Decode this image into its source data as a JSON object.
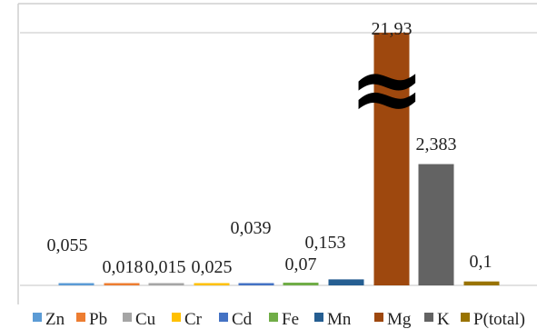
{
  "chart_data": {
    "type": "bar",
    "categories": [
      "Zn",
      "Pb",
      "Cu",
      "Cr",
      "Cd",
      "Fe",
      "Mn",
      "Mg",
      "K",
      "P(total)"
    ],
    "values": [
      0.055,
      0.018,
      0.015,
      0.025,
      0.039,
      0.07,
      0.153,
      21.93,
      2.383,
      0.1
    ],
    "data_labels": [
      "0,055",
      "0,018",
      "0,015",
      "0,025",
      "0,039",
      "0,07",
      "0,153",
      "21,93",
      "2,383",
      "0,1"
    ],
    "colors": [
      "#5b9bd5",
      "#ed7d31",
      "#a5a5a5",
      "#ffc000",
      "#4472c4",
      "#70ad47",
      "#255e91",
      "#9e480e",
      "#636363",
      "#997300"
    ],
    "axis_break_symbol": "≈",
    "axis_break": true,
    "grid": true,
    "legend_position": "bottom",
    "title": "",
    "xlabel": "",
    "ylabel": ""
  }
}
